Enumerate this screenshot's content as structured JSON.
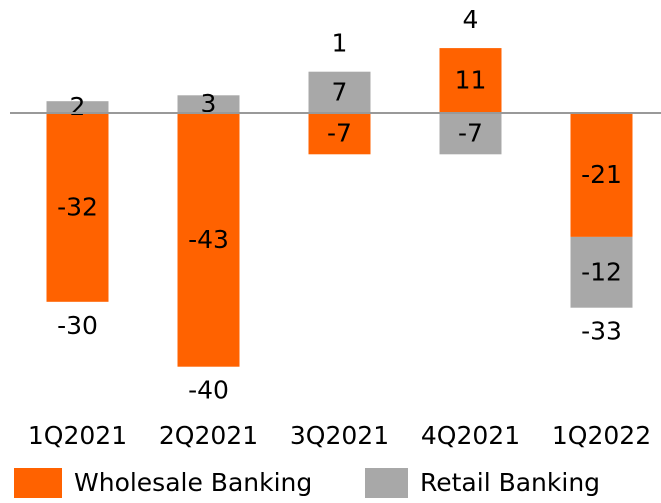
{
  "chart_data": {
    "type": "bar",
    "stacked": true,
    "categories": [
      "1Q2021",
      "2Q2021",
      "3Q2021",
      "4Q2021",
      "1Q2022"
    ],
    "series": [
      {
        "name": "Wholesale Banking",
        "color": "#ff6200",
        "values": [
          -32,
          -43,
          -7,
          11,
          -21
        ]
      },
      {
        "name": "Retail Banking",
        "color": "#a8a8a8",
        "values": [
          2,
          3,
          7,
          -7,
          -12
        ]
      }
    ],
    "totals": [
      -30,
      -40,
      1,
      4,
      -33
    ]
  }
}
